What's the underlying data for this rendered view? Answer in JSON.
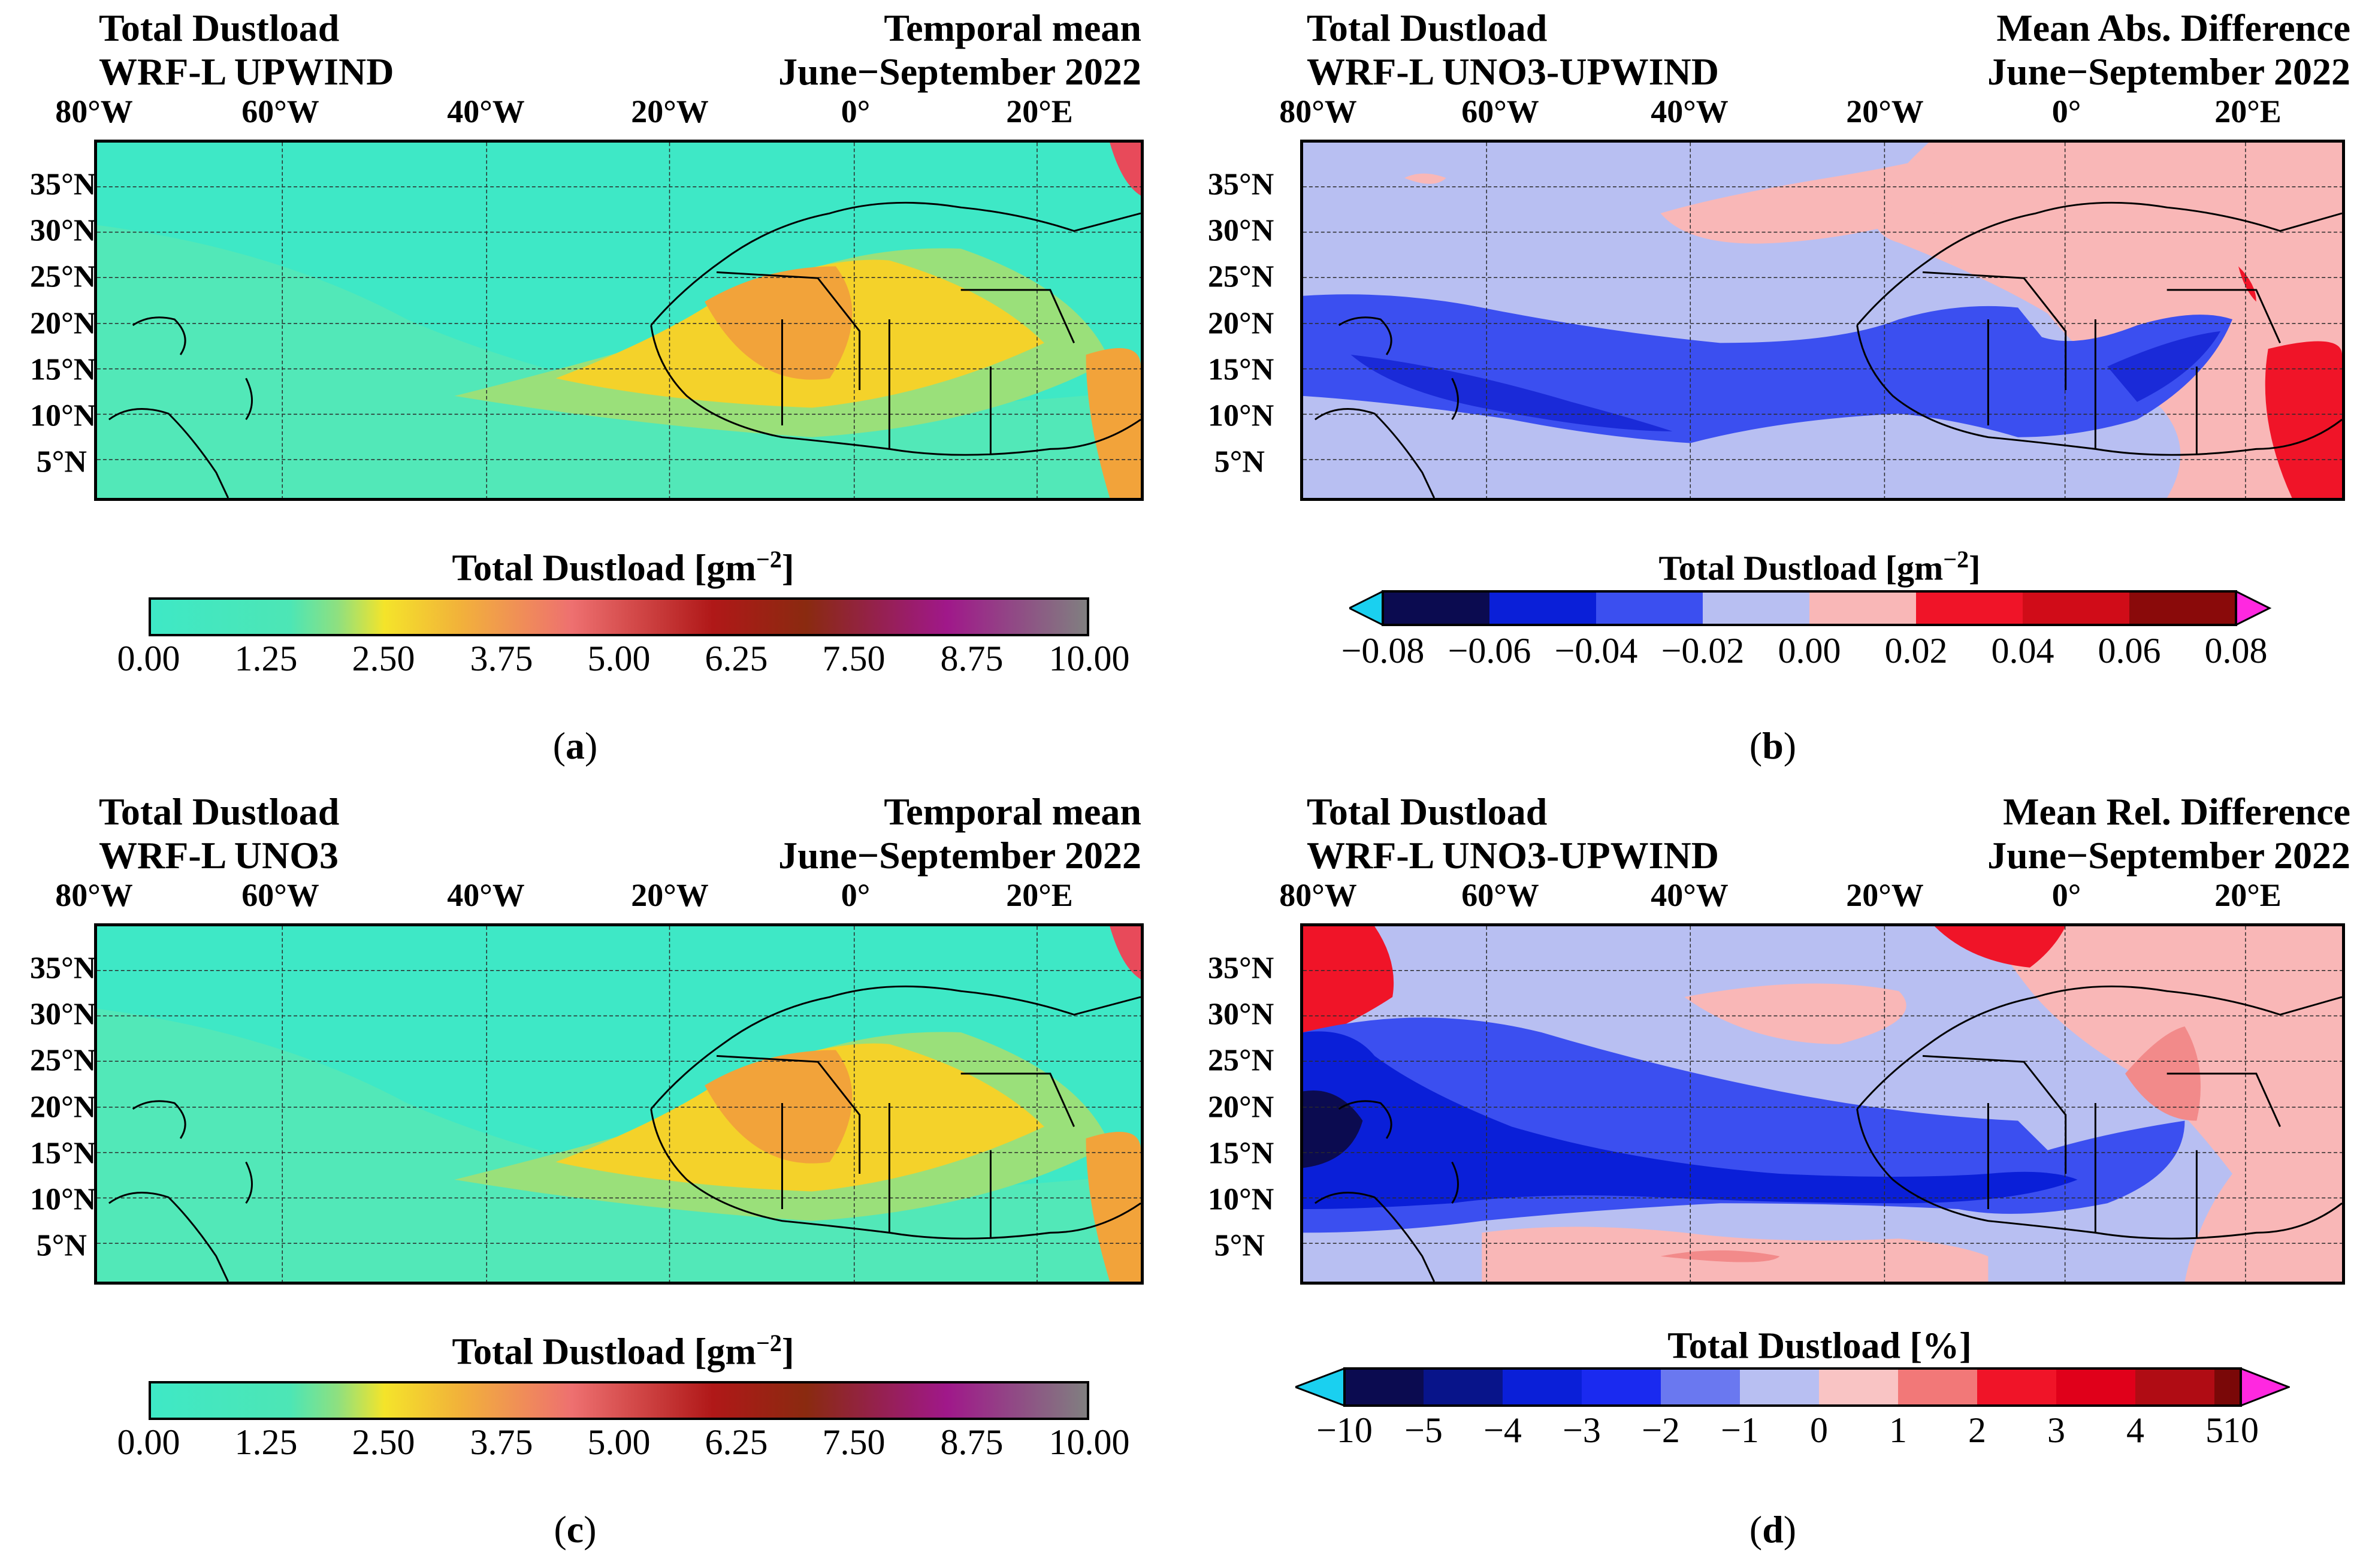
{
  "lon_labels": [
    "80°W",
    "60°W",
    "40°W",
    "20°W",
    "0°",
    "20°E"
  ],
  "lat_labels": [
    "35°N",
    "30°N",
    "25°N",
    "20°N",
    "15°N",
    "10°N",
    "5°N"
  ],
  "panels": {
    "a": {
      "title_left": [
        "Total Dustload",
        "WRF-L UPWIND"
      ],
      "title_right": [
        "Temporal mean",
        "June−September 2022"
      ],
      "colorbar_label": "Total Dustload [gm",
      "colorbar_label_sup": "−2",
      "colorbar_label_end": "]",
      "ticks": [
        "0.00",
        "1.25",
        "2.50",
        "3.75",
        "5.00",
        "6.25",
        "7.50",
        "8.75",
        "10.00"
      ],
      "label_open": "(",
      "label_letter": "a",
      "label_close": ")"
    },
    "b": {
      "title_left": [
        "Total Dustload",
        "WRF-L UNO3-UPWIND"
      ],
      "title_right": [
        "Mean Abs. Difference",
        "June−September 2022"
      ],
      "colorbar_label": "Total Dustload [gm",
      "colorbar_label_sup": "−2",
      "colorbar_label_end": "]",
      "ticks": [
        "−0.08",
        "−0.06",
        "−0.04",
        "−0.02",
        "0.00",
        "0.02",
        "0.04",
        "0.06",
        "0.08"
      ],
      "label_open": "(",
      "label_letter": "b",
      "label_close": ")"
    },
    "c": {
      "title_left": [
        "Total Dustload",
        "WRF-L UNO3"
      ],
      "title_right": [
        "Temporal mean",
        "June−September 2022"
      ],
      "colorbar_label": "Total Dustload [gm",
      "colorbar_label_sup": "−2",
      "colorbar_label_end": "]",
      "ticks": [
        "0.00",
        "1.25",
        "2.50",
        "3.75",
        "5.00",
        "6.25",
        "7.50",
        "8.75",
        "10.00"
      ],
      "label_open": "(",
      "label_letter": "c",
      "label_close": ")"
    },
    "d": {
      "title_left": [
        "Total Dustload",
        "WRF-L UNO3-UPWIND"
      ],
      "title_right": [
        "Mean Rel. Difference",
        "June−September 2022"
      ],
      "colorbar_label": "Total Dustload [%]",
      "colorbar_label_sup": "",
      "colorbar_label_end": "",
      "ticks": [
        "−10",
        "−5",
        "−4",
        "−3",
        "−2",
        "−1",
        "0",
        "1",
        "2",
        "3",
        "4",
        "5",
        "10"
      ],
      "label_open": "(",
      "label_letter": "d",
      "label_close": ")"
    }
  },
  "colors": {
    "ocean_cyan": "#3ee8c6",
    "dust_yellow": "#f4d22a",
    "dust_orange": "#f2a33a",
    "diff_blue_dark": "#0a1fd8",
    "diff_blue_light": "#b8bff2",
    "diff_red_light": "#f9b7b7",
    "diff_red": "#f01428"
  }
}
